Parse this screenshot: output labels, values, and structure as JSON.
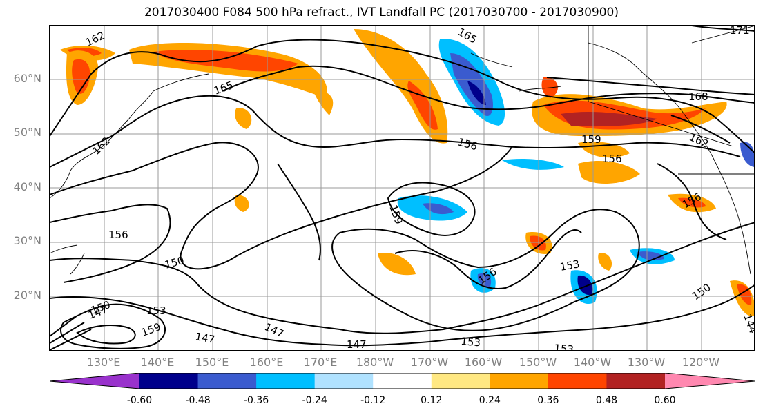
{
  "title": "2017030400 F084 500 hPa refract., IVT Landfall PC (2017030700 - 2017030900)",
  "lat_labels": [
    "60°N",
    "50°N",
    "40°N",
    "30°N",
    "20°N"
  ],
  "lon_labels": [
    "130°E",
    "140°E",
    "150°E",
    "160°E",
    "170°E",
    "180°W",
    "170°W",
    "160°W",
    "150°W",
    "140°W",
    "130°W",
    "120°W"
  ],
  "colorbar": {
    "ticks": [
      "-0.60",
      "-0.48",
      "-0.36",
      "-0.24",
      "-0.12",
      "0.12",
      "0.24",
      "0.36",
      "0.48",
      "0.60"
    ],
    "colors": [
      "#9932cc",
      "#00008b",
      "#3a5bcf",
      "#00bfff",
      "#b0e2ff",
      "#ffffff",
      "#ffe882",
      "#ffa500",
      "#ff4500",
      "#b22222",
      "#ff88b0"
    ]
  },
  "contour_labels": [
    "162",
    "165",
    "162",
    "156",
    "150",
    "147",
    "150",
    "153",
    "159",
    "147",
    "147",
    "147",
    "159",
    "156",
    "165",
    "156",
    "159",
    "156",
    "168",
    "159",
    "156",
    "162",
    "156",
    "153",
    "153",
    "153",
    "150",
    "171",
    "147",
    "144"
  ]
}
